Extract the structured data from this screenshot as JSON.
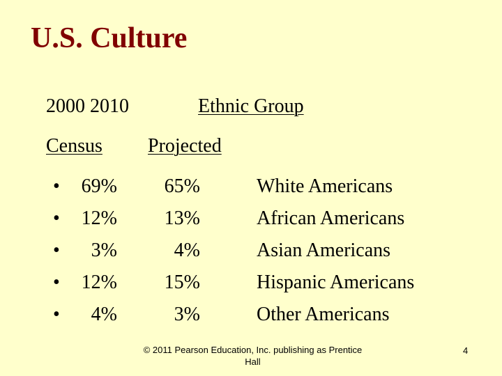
{
  "slide": {
    "title": "U.S. Culture",
    "headers": {
      "years": "2000 2010",
      "ethnic_group": "Ethnic Group",
      "census": "Census",
      "projected": "Projected"
    },
    "bullet_glyph": "•",
    "rows": [
      {
        "census_2000": "69%",
        "projected_2010": "65%",
        "group": "White Americans"
      },
      {
        "census_2000": "12%",
        "projected_2010": "13%",
        "group": "African Americans"
      },
      {
        "census_2000": "3%",
        "projected_2010": "4%",
        "group": "Asian Americans"
      },
      {
        "census_2000": "12%",
        "projected_2010": "15%",
        "group": "Hispanic Americans"
      },
      {
        "census_2000": "4%",
        "projected_2010": "3%",
        "group": "Other Americans"
      }
    ],
    "footer": "© 2011 Pearson Education, Inc. publishing as Prentice Hall",
    "page_number": "4",
    "colors": {
      "background": "#FFFFCC",
      "title": "#800000",
      "text": "#000000"
    }
  }
}
